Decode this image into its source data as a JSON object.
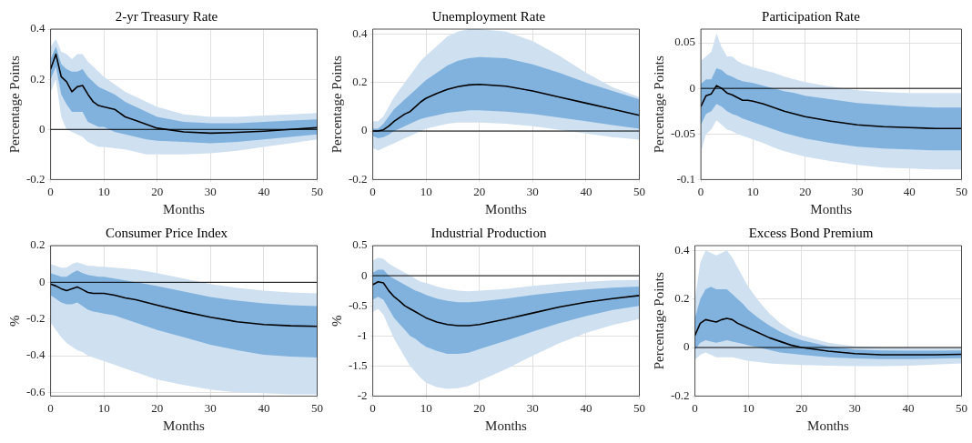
{
  "chart_data": [
    {
      "type": "line",
      "title": "2-yr Treasury Rate",
      "xlabel": "Months",
      "ylabel": "Percentage Points",
      "x": [
        0,
        1,
        2,
        3,
        4,
        5,
        6,
        7,
        8,
        9,
        10,
        12,
        14,
        16,
        18,
        20,
        25,
        30,
        35,
        40,
        45,
        50
      ],
      "xlim": [
        0,
        50
      ],
      "xticks": [
        0,
        10,
        20,
        30,
        40,
        50
      ],
      "ylim": [
        -0.2,
        0.4
      ],
      "yticks": [
        -0.2,
        0,
        0.2,
        0.4
      ],
      "grid": true,
      "legend": false,
      "ref_lines": [
        {
          "axis": "y",
          "value": 0,
          "color": "#000000"
        }
      ],
      "series": [
        {
          "color": "#cfe0f1",
          "values": [
            null,
            null,
            null,
            null,
            null,
            null,
            null,
            null,
            null,
            null,
            null,
            null,
            null,
            null,
            null,
            null,
            null,
            null,
            null,
            null,
            null,
            null
          ],
          "lower": [
            0.15,
            0.2,
            0.05,
            0,
            -0.01,
            -0.02,
            -0.03,
            -0.05,
            -0.06,
            -0.07,
            -0.07,
            -0.075,
            -0.08,
            -0.09,
            -0.1,
            -0.1,
            -0.1,
            -0.095,
            -0.085,
            -0.07,
            -0.055,
            -0.04
          ],
          "upper": [
            0.33,
            0.36,
            0.31,
            0.3,
            0.28,
            0.3,
            0.3,
            0.27,
            0.25,
            0.23,
            0.21,
            0.18,
            0.15,
            0.13,
            0.11,
            0.09,
            0.06,
            0.05,
            0.05,
            0.055,
            0.06,
            0.065
          ]
        },
        {
          "color": "#80b2dd",
          "values": [
            null,
            null,
            null,
            null,
            null,
            null,
            null,
            null,
            null,
            null,
            null,
            null,
            null,
            null,
            null,
            null,
            null,
            null,
            null,
            null,
            null,
            null
          ],
          "lower": [
            0.2,
            0.25,
            0.14,
            0.1,
            0.07,
            0.07,
            0.07,
            0.03,
            0.02,
            0.01,
            0.01,
            -0.01,
            -0.02,
            -0.03,
            -0.04,
            -0.045,
            -0.05,
            -0.055,
            -0.05,
            -0.04,
            -0.03,
            -0.02
          ],
          "upper": [
            0.28,
            0.33,
            0.26,
            0.24,
            0.23,
            0.23,
            0.24,
            0.21,
            0.19,
            0.17,
            0.16,
            0.14,
            0.11,
            0.09,
            0.07,
            0.05,
            0.03,
            0.025,
            0.025,
            0.03,
            0.035,
            0.04
          ]
        },
        {
          "color": "#000000",
          "values": [
            0.24,
            0.3,
            0.21,
            0.19,
            0.15,
            0.17,
            0.175,
            0.14,
            0.11,
            0.095,
            0.09,
            0.08,
            0.05,
            0.035,
            0.02,
            0.005,
            -0.01,
            -0.015,
            -0.012,
            -0.007,
            0,
            0.007
          ]
        }
      ]
    },
    {
      "type": "line",
      "title": "Unemployment Rate",
      "xlabel": "Months",
      "ylabel": "Percentage Points",
      "x": [
        0,
        1,
        2,
        3,
        4,
        5,
        6,
        7,
        8,
        9,
        10,
        12,
        14,
        16,
        18,
        20,
        25,
        30,
        35,
        40,
        45,
        50
      ],
      "xlim": [
        0,
        50
      ],
      "xticks": [
        0,
        10,
        20,
        30,
        40,
        50
      ],
      "ylim": [
        -0.2,
        0.42
      ],
      "yticks": [
        -0.2,
        0,
        0.2,
        0.4
      ],
      "grid": true,
      "legend": false,
      "ref_lines": [
        {
          "axis": "y",
          "value": 0,
          "color": "#000000"
        }
      ],
      "series": [
        {
          "color": "#cfe0f1",
          "values": [
            null,
            null,
            null,
            null,
            null,
            null,
            null,
            null,
            null,
            null,
            null,
            null,
            null,
            null,
            null,
            null,
            null,
            null,
            null,
            null,
            null,
            null
          ],
          "lower": [
            -0.07,
            -0.08,
            -0.07,
            -0.06,
            -0.05,
            -0.04,
            -0.03,
            -0.02,
            -0.01,
            0,
            0.01,
            0.02,
            0.03,
            0.035,
            0.035,
            0.035,
            0.03,
            0.02,
            0.005,
            -0.01,
            -0.025,
            -0.035
          ],
          "upper": [
            0.04,
            0.04,
            0.06,
            0.1,
            0.14,
            0.17,
            0.2,
            0.23,
            0.26,
            0.29,
            0.31,
            0.35,
            0.39,
            0.41,
            0.42,
            0.42,
            0.41,
            0.37,
            0.31,
            0.24,
            0.18,
            0.14
          ]
        },
        {
          "color": "#80b2dd",
          "values": [
            null,
            null,
            null,
            null,
            null,
            null,
            null,
            null,
            null,
            null,
            null,
            null,
            null,
            null,
            null,
            null,
            null,
            null,
            null,
            null,
            null,
            null
          ],
          "lower": [
            -0.02,
            -0.03,
            -0.025,
            -0.015,
            0,
            0.01,
            0.02,
            0.03,
            0.04,
            0.05,
            0.055,
            0.065,
            0.075,
            0.08,
            0.085,
            0.085,
            0.08,
            0.07,
            0.055,
            0.04,
            0.025,
            0.01
          ],
          "upper": [
            0.01,
            0.01,
            0.03,
            0.06,
            0.09,
            0.11,
            0.13,
            0.15,
            0.17,
            0.19,
            0.21,
            0.24,
            0.27,
            0.29,
            0.3,
            0.305,
            0.3,
            0.275,
            0.24,
            0.2,
            0.165,
            0.13
          ]
        },
        {
          "color": "#000000",
          "values": [
            0,
            0,
            0.005,
            0.02,
            0.04,
            0.055,
            0.07,
            0.08,
            0.1,
            0.12,
            0.135,
            0.155,
            0.172,
            0.183,
            0.19,
            0.192,
            0.185,
            0.165,
            0.14,
            0.115,
            0.09,
            0.065
          ]
        }
      ]
    },
    {
      "type": "line",
      "title": "Participation Rate",
      "xlabel": "Months",
      "ylabel": "Percentage Points",
      "x": [
        0,
        1,
        2,
        3,
        4,
        5,
        6,
        7,
        8,
        9,
        10,
        12,
        14,
        16,
        18,
        20,
        25,
        30,
        35,
        40,
        45,
        50
      ],
      "xlim": [
        0,
        50
      ],
      "xticks": [
        0,
        10,
        20,
        30,
        40,
        50
      ],
      "ylim": [
        -0.1,
        0.065
      ],
      "yticks": [
        -0.1,
        -0.05,
        0,
        0.05
      ],
      "grid": true,
      "legend": false,
      "ref_lines": [
        {
          "axis": "y",
          "value": 0,
          "color": "#000000"
        }
      ],
      "series": [
        {
          "color": "#cfe0f1",
          "values": [
            null,
            null,
            null,
            null,
            null,
            null,
            null,
            null,
            null,
            null,
            null,
            null,
            null,
            null,
            null,
            null,
            null,
            null,
            null,
            null,
            null,
            null
          ],
          "lower": [
            -0.07,
            -0.05,
            -0.045,
            -0.035,
            -0.04,
            -0.045,
            -0.047,
            -0.05,
            -0.052,
            -0.054,
            -0.056,
            -0.06,
            -0.065,
            -0.069,
            -0.072,
            -0.075,
            -0.08,
            -0.084,
            -0.087,
            -0.088,
            -0.089,
            -0.089
          ],
          "upper": [
            0.03,
            0.035,
            0.04,
            0.06,
            0.045,
            0.035,
            0.035,
            0.03,
            0.027,
            0.025,
            0.023,
            0.02,
            0.017,
            0.013,
            0.01,
            0.007,
            0.002,
            -0.002,
            -0.004,
            -0.005,
            -0.005,
            -0.005
          ]
        },
        {
          "color": "#80b2dd",
          "values": [
            null,
            null,
            null,
            null,
            null,
            null,
            null,
            null,
            null,
            null,
            null,
            null,
            null,
            null,
            null,
            null,
            null,
            null,
            null,
            null,
            null,
            null
          ],
          "lower": [
            -0.04,
            -0.028,
            -0.025,
            -0.017,
            -0.02,
            -0.025,
            -0.028,
            -0.03,
            -0.033,
            -0.035,
            -0.037,
            -0.041,
            -0.045,
            -0.049,
            -0.052,
            -0.055,
            -0.06,
            -0.064,
            -0.066,
            -0.067,
            -0.068,
            -0.068
          ],
          "upper": [
            0.005,
            0.01,
            0.01,
            0.022,
            0.02,
            0.015,
            0.013,
            0.01,
            0.008,
            0.007,
            0.006,
            0.003,
            0,
            -0.003,
            -0.005,
            -0.008,
            -0.012,
            -0.016,
            -0.018,
            -0.02,
            -0.021,
            -0.021
          ]
        },
        {
          "color": "#000000",
          "values": [
            -0.02,
            -0.008,
            -0.006,
            0.003,
            0,
            -0.005,
            -0.007,
            -0.01,
            -0.013,
            -0.013,
            -0.014,
            -0.017,
            -0.021,
            -0.025,
            -0.028,
            -0.031,
            -0.036,
            -0.04,
            -0.042,
            -0.043,
            -0.044,
            -0.044
          ]
        }
      ]
    },
    {
      "type": "line",
      "title": "Consumer Price Index",
      "xlabel": "Months",
      "ylabel": "%",
      "x": [
        0,
        1,
        2,
        3,
        4,
        5,
        6,
        7,
        8,
        9,
        10,
        12,
        14,
        16,
        18,
        20,
        25,
        30,
        35,
        40,
        45,
        50
      ],
      "xlim": [
        0,
        50
      ],
      "xticks": [
        0,
        10,
        20,
        30,
        40,
        50
      ],
      "ylim": [
        -0.62,
        0.2
      ],
      "yticks": [
        -0.6,
        -0.4,
        -0.2,
        0,
        0.2
      ],
      "grid": true,
      "legend": false,
      "ref_lines": [
        {
          "axis": "y",
          "value": 0,
          "color": "#000000"
        }
      ],
      "series": [
        {
          "color": "#cfe0f1",
          "values": [
            null,
            null,
            null,
            null,
            null,
            null,
            null,
            null,
            null,
            null,
            null,
            null,
            null,
            null,
            null,
            null,
            null,
            null,
            null,
            null,
            null,
            null
          ],
          "lower": [
            -0.22,
            -0.26,
            -0.3,
            -0.33,
            -0.35,
            -0.37,
            -0.38,
            -0.4,
            -0.41,
            -0.42,
            -0.43,
            -0.45,
            -0.47,
            -0.49,
            -0.51,
            -0.53,
            -0.56,
            -0.585,
            -0.6,
            -0.605,
            -0.61,
            -0.61
          ],
          "upper": [
            0.1,
            0.09,
            0.08,
            0.08,
            0.1,
            0.11,
            0.1,
            0.09,
            0.09,
            0.085,
            0.085,
            0.08,
            0.075,
            0.07,
            0.06,
            0.05,
            0.02,
            -0.01,
            -0.03,
            -0.045,
            -0.055,
            -0.06
          ]
        },
        {
          "color": "#80b2dd",
          "values": [
            null,
            null,
            null,
            null,
            null,
            null,
            null,
            null,
            null,
            null,
            null,
            null,
            null,
            null,
            null,
            null,
            null,
            null,
            null,
            null,
            null,
            null
          ],
          "lower": [
            -0.07,
            -0.09,
            -0.11,
            -0.12,
            -0.12,
            -0.11,
            -0.13,
            -0.15,
            -0.16,
            -0.165,
            -0.17,
            -0.18,
            -0.2,
            -0.22,
            -0.24,
            -0.26,
            -0.3,
            -0.34,
            -0.37,
            -0.395,
            -0.405,
            -0.41
          ],
          "upper": [
            0.05,
            0.04,
            0.03,
            0.03,
            0.05,
            0.065,
            0.05,
            0.04,
            0.035,
            0.03,
            0.03,
            0.02,
            0.01,
            0,
            -0.01,
            -0.02,
            -0.05,
            -0.08,
            -0.1,
            -0.115,
            -0.125,
            -0.13
          ]
        },
        {
          "color": "#000000",
          "values": [
            -0.01,
            -0.02,
            -0.035,
            -0.045,
            -0.035,
            -0.025,
            -0.04,
            -0.055,
            -0.06,
            -0.06,
            -0.06,
            -0.07,
            -0.085,
            -0.095,
            -0.11,
            -0.125,
            -0.16,
            -0.19,
            -0.215,
            -0.23,
            -0.237,
            -0.24
          ]
        }
      ]
    },
    {
      "type": "line",
      "title": "Industrial Production",
      "xlabel": "Months",
      "ylabel": "%",
      "x": [
        0,
        1,
        2,
        3,
        4,
        5,
        6,
        7,
        8,
        9,
        10,
        12,
        14,
        16,
        18,
        20,
        25,
        30,
        35,
        40,
        45,
        50
      ],
      "xlim": [
        0,
        50
      ],
      "xticks": [
        0,
        10,
        20,
        30,
        40,
        50
      ],
      "ylim": [
        -2,
        0.5
      ],
      "yticks": [
        -2,
        -1.5,
        -1,
        -0.5,
        0,
        0.5
      ],
      "grid": true,
      "legend": false,
      "ref_lines": [
        {
          "axis": "y",
          "value": 0,
          "color": "#000000"
        }
      ],
      "series": [
        {
          "color": "#cfe0f1",
          "values": [
            null,
            null,
            null,
            null,
            null,
            null,
            null,
            null,
            null,
            null,
            null,
            null,
            null,
            null,
            null,
            null,
            null,
            null,
            null,
            null,
            null,
            null
          ],
          "lower": [
            -0.6,
            -0.55,
            -0.65,
            -0.85,
            -1.05,
            -1.2,
            -1.35,
            -1.5,
            -1.6,
            -1.7,
            -1.78,
            -1.85,
            -1.88,
            -1.87,
            -1.83,
            -1.75,
            -1.55,
            -1.33,
            -1.12,
            -0.95,
            -0.82,
            -0.72
          ],
          "upper": [
            0.25,
            0.3,
            0.28,
            0.2,
            0.15,
            0.1,
            0.05,
            0,
            -0.05,
            -0.1,
            -0.12,
            -0.18,
            -0.22,
            -0.25,
            -0.26,
            -0.25,
            -0.22,
            -0.17,
            -0.13,
            -0.1,
            -0.08,
            -0.07
          ]
        },
        {
          "color": "#80b2dd",
          "values": [
            null,
            null,
            null,
            null,
            null,
            null,
            null,
            null,
            null,
            null,
            null,
            null,
            null,
            null,
            null,
            null,
            null,
            null,
            null,
            null,
            null,
            null
          ],
          "lower": [
            -0.4,
            -0.35,
            -0.4,
            -0.55,
            -0.7,
            -0.8,
            -0.9,
            -1,
            -1.05,
            -1.12,
            -1.18,
            -1.25,
            -1.3,
            -1.3,
            -1.28,
            -1.22,
            -1.08,
            -0.93,
            -0.79,
            -0.67,
            -0.57,
            -0.5
          ],
          "upper": [
            0.05,
            0.1,
            0.1,
            0,
            -0.05,
            -0.1,
            -0.15,
            -0.2,
            -0.25,
            -0.28,
            -0.32,
            -0.38,
            -0.42,
            -0.44,
            -0.44,
            -0.43,
            -0.38,
            -0.32,
            -0.27,
            -0.23,
            -0.2,
            -0.18
          ]
        },
        {
          "color": "#000000",
          "values": [
            -0.15,
            -0.1,
            -0.12,
            -0.25,
            -0.35,
            -0.42,
            -0.5,
            -0.55,
            -0.6,
            -0.65,
            -0.7,
            -0.77,
            -0.81,
            -0.83,
            -0.83,
            -0.81,
            -0.72,
            -0.62,
            -0.52,
            -0.44,
            -0.38,
            -0.33
          ]
        }
      ]
    },
    {
      "type": "line",
      "title": "Excess Bond Premium",
      "xlabel": "Months",
      "ylabel": "Percentage Points",
      "x": [
        0,
        1,
        2,
        3,
        4,
        5,
        6,
        7,
        8,
        9,
        10,
        12,
        14,
        16,
        18,
        20,
        25,
        30,
        35,
        40,
        45,
        50
      ],
      "xlim": [
        0,
        50
      ],
      "xticks": [
        0,
        10,
        20,
        30,
        40,
        50
      ],
      "ylim": [
        -0.2,
        0.42
      ],
      "yticks": [
        -0.2,
        0,
        0.2,
        0.4
      ],
      "grid": true,
      "legend": false,
      "ref_lines": [
        {
          "axis": "y",
          "value": 0,
          "color": "#000000"
        }
      ],
      "series": [
        {
          "color": "#cfe0f1",
          "values": [
            null,
            null,
            null,
            null,
            null,
            null,
            null,
            null,
            null,
            null,
            null,
            null,
            null,
            null,
            null,
            null,
            null,
            null,
            null,
            null,
            null,
            null
          ],
          "lower": [
            -0.05,
            -0.03,
            -0.02,
            -0.03,
            -0.04,
            -0.04,
            -0.04,
            -0.04,
            -0.045,
            -0.05,
            -0.055,
            -0.06,
            -0.065,
            -0.068,
            -0.07,
            -0.072,
            -0.075,
            -0.077,
            -0.077,
            -0.075,
            -0.07,
            -0.065
          ],
          "upper": [
            0.2,
            0.35,
            0.4,
            0.39,
            0.38,
            0.39,
            0.4,
            0.37,
            0.33,
            0.29,
            0.25,
            0.19,
            0.14,
            0.1,
            0.07,
            0.05,
            0.02,
            0.005,
            0,
            -0.003,
            -0.003,
            -0.003
          ]
        },
        {
          "color": "#80b2dd",
          "values": [
            null,
            null,
            null,
            null,
            null,
            null,
            null,
            null,
            null,
            null,
            null,
            null,
            null,
            null,
            null,
            null,
            null,
            null,
            null,
            null,
            null,
            null
          ],
          "lower": [
            -0.01,
            0.02,
            0.03,
            0.025,
            0.02,
            0.025,
            0.03,
            0.025,
            0.02,
            0.015,
            0.01,
            0,
            -0.01,
            -0.02,
            -0.025,
            -0.03,
            -0.04,
            -0.045,
            -0.048,
            -0.048,
            -0.046,
            -0.044
          ],
          "upper": [
            0.12,
            0.2,
            0.24,
            0.25,
            0.24,
            0.24,
            0.24,
            0.22,
            0.2,
            0.18,
            0.155,
            0.12,
            0.09,
            0.065,
            0.045,
            0.03,
            0.005,
            -0.008,
            -0.012,
            -0.013,
            -0.013,
            -0.012
          ]
        },
        {
          "color": "#000000",
          "values": [
            0.05,
            0.1,
            0.115,
            0.11,
            0.105,
            0.115,
            0.12,
            0.115,
            0.1,
            0.09,
            0.08,
            0.06,
            0.04,
            0.025,
            0.01,
            0,
            -0.015,
            -0.025,
            -0.03,
            -0.03,
            -0.03,
            -0.028
          ]
        }
      ]
    }
  ]
}
